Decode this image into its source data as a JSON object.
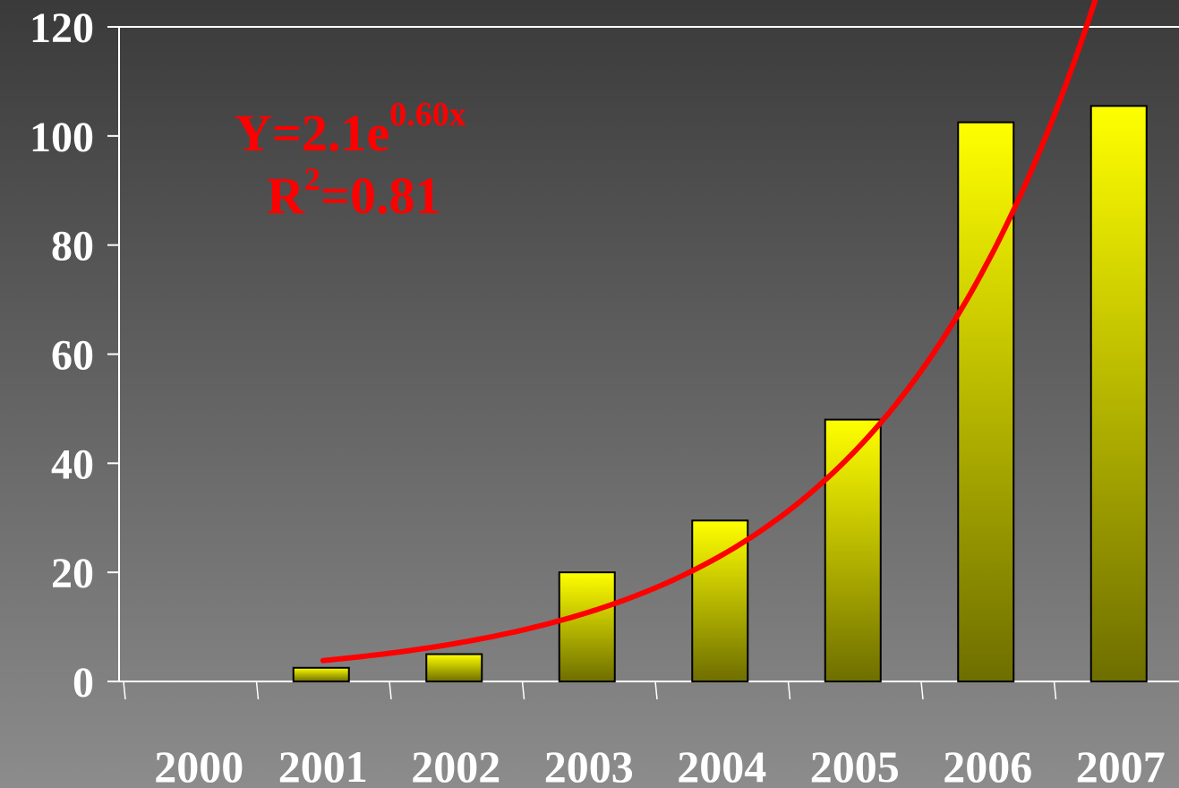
{
  "chart_data": {
    "type": "bar",
    "categories": [
      "2000",
      "2001",
      "2002",
      "2003",
      "2004",
      "2005",
      "2006",
      "2007"
    ],
    "values": [
      0,
      2.5,
      5,
      20,
      29.5,
      48,
      102.5,
      105.5
    ],
    "color": "#ffff00",
    "ylim": [
      0,
      120
    ],
    "yticks": [
      0,
      20,
      40,
      60,
      80,
      100,
      120
    ],
    "trendline": {
      "a": 2.1,
      "b": 0.6,
      "color": "#ff0000"
    },
    "annotations": {
      "equation": "Y=2.1e",
      "equation_exponent": "0.60x",
      "r2_prefix": "R",
      "r2_superscript": "2",
      "r2_value": "=0.81"
    }
  }
}
